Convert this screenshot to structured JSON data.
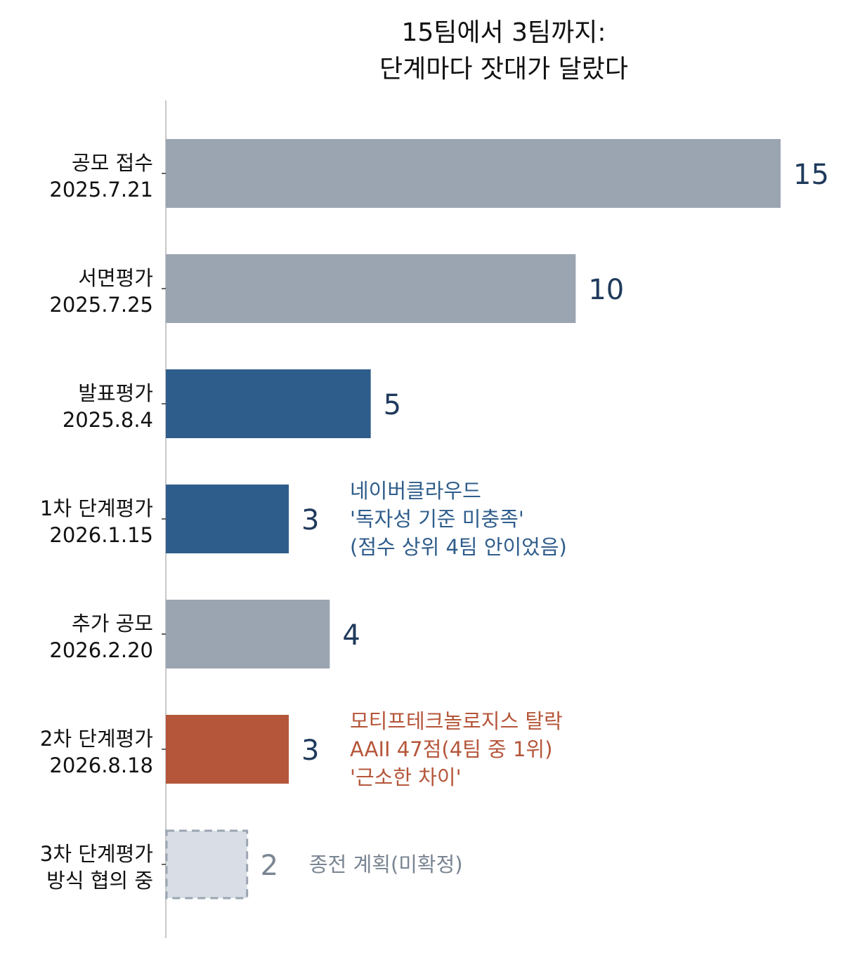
{
  "chart_data": {
    "type": "bar",
    "orientation": "horizontal",
    "title": [
      "15팀에서 3팀까지:",
      "단계마다 잣대가 달랐다"
    ],
    "xlim": [
      0,
      15
    ],
    "grid": false,
    "legend": "none",
    "categories": [
      [
        "공모 접수",
        "2025.7.21"
      ],
      [
        "서면평가",
        "2025.7.25"
      ],
      [
        "발표평가",
        "2025.8.4"
      ],
      [
        "1차 단계평가",
        "2026.1.15"
      ],
      [
        "추가 공모",
        "2026.2.20"
      ],
      [
        "2차 단계평가",
        "2026.8.18"
      ],
      [
        "3차 단계평가",
        "방식 협의 중"
      ]
    ],
    "values": [
      15,
      10,
      5,
      3,
      4,
      3,
      2
    ],
    "value_labels": [
      "15",
      "10",
      "5",
      "3",
      "4",
      "3",
      "2"
    ],
    "bar_styles": [
      "gray",
      "gray",
      "blue",
      "blue",
      "gray",
      "red",
      "planned"
    ],
    "annotations": [
      {
        "bar": 3,
        "lines": [
          "네이버클라우드",
          "'독자성 기준 미충족'",
          "(점수 상위 4팀 안이었음)"
        ],
        "style": "blue"
      },
      {
        "bar": 5,
        "lines": [
          "모티프테크놀로지스 탈락",
          "AAII 47점(4팀 중 1위)",
          "'근소한 차이'"
        ],
        "style": "red"
      },
      {
        "bar": 6,
        "lines": [
          "종전 계획(미확정)"
        ],
        "style": "planned"
      }
    ]
  },
  "colors": {
    "gray": "#9ba5b1",
    "blue": "#2f5d8b",
    "red": "#b5563a",
    "planned_fill": "#d9dee6",
    "planned_stroke": "#9ba5b1",
    "value_text": "#1f3a5c",
    "planned_text": "#7a8593",
    "axis": "#c8c8c8"
  }
}
